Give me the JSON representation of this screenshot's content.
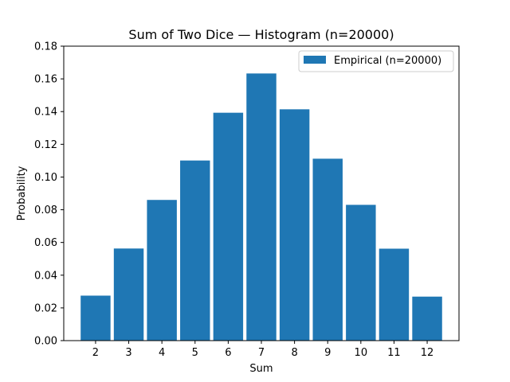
{
  "chart_data": {
    "type": "bar",
    "title": "Sum of Two Dice — Histogram (n=20000)",
    "xlabel": "Sum",
    "ylabel": "Probability",
    "categories": [
      "2",
      "3",
      "4",
      "5",
      "6",
      "7",
      "8",
      "9",
      "10",
      "11",
      "12"
    ],
    "series": [
      {
        "name": "Empirical (n=20000)",
        "color": "#1f77b4",
        "values": [
          0.0275,
          0.0563,
          0.086,
          0.1101,
          0.1393,
          0.1633,
          0.1414,
          0.1112,
          0.083,
          0.0562,
          0.0269
        ]
      }
    ],
    "ylim": [
      0,
      0.18
    ],
    "yticks": [
      "0.00",
      "0.02",
      "0.04",
      "0.06",
      "0.08",
      "0.10",
      "0.12",
      "0.14",
      "0.16",
      "0.18"
    ],
    "grid": false,
    "legend_position": "top-right"
  }
}
